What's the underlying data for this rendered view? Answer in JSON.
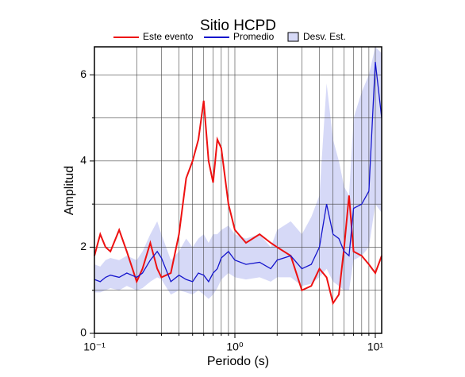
{
  "chart_data": {
    "type": "line",
    "title": "Sitio HCPD",
    "xlabel": "Periodo (s)",
    "ylabel": "Amplitud",
    "xscale": "log",
    "grid": true,
    "legend": "top",
    "xlim": [
      0.1,
      11.1
    ],
    "ylim": [
      0,
      6.65
    ],
    "xticks": [
      {
        "value": 0.1,
        "label": "10⁻¹"
      },
      {
        "value": 1,
        "label": "10⁰"
      },
      {
        "value": 10,
        "label": "10¹"
      }
    ],
    "xminor": [
      0.2,
      0.3,
      0.4,
      0.5,
      0.6,
      0.7,
      0.8,
      0.9,
      2,
      3,
      4,
      5,
      6,
      7,
      8,
      9
    ],
    "yticks": [
      0,
      2,
      4,
      6
    ],
    "yminor": [
      1,
      3,
      5
    ],
    "x": [
      0.1,
      0.11,
      0.12,
      0.13,
      0.15,
      0.17,
      0.2,
      0.22,
      0.25,
      0.28,
      0.3,
      0.35,
      0.4,
      0.45,
      0.5,
      0.55,
      0.6,
      0.65,
      0.7,
      0.75,
      0.8,
      0.9,
      1.0,
      1.2,
      1.5,
      1.8,
      2.0,
      2.5,
      3.0,
      3.5,
      4.0,
      4.5,
      5.0,
      5.5,
      6.0,
      6.5,
      7.0,
      8.0,
      9.0,
      10.0,
      11.1
    ],
    "band": {
      "name": "Desv. Est.",
      "color": "#d6d9f7",
      "lower": [
        0.95,
        0.95,
        1.0,
        1.05,
        1.0,
        1.1,
        1.0,
        1.05,
        1.2,
        1.3,
        1.25,
        0.9,
        1.0,
        0.95,
        0.9,
        1.0,
        0.9,
        0.8,
        0.9,
        1.05,
        1.25,
        1.4,
        1.3,
        1.25,
        1.3,
        1.2,
        1.3,
        1.3,
        1.1,
        1.15,
        1.3,
        1.5,
        1.2,
        1.1,
        1.0,
        1.0,
        1.7,
        1.8,
        2.0,
        3.0,
        2.8
      ],
      "upper": [
        1.6,
        1.55,
        1.7,
        1.75,
        1.7,
        1.8,
        1.7,
        1.9,
        2.3,
        2.6,
        2.3,
        1.7,
        1.9,
        2.2,
        2.0,
        2.2,
        2.3,
        2.1,
        2.3,
        2.3,
        2.4,
        2.5,
        2.3,
        2.2,
        2.3,
        2.0,
        2.4,
        2.6,
        2.3,
        2.7,
        3.2,
        5.8,
        4.5,
        4.0,
        3.4,
        3.2,
        5.0,
        5.6,
        6.0,
        6.65,
        6.5
      ]
    },
    "series": [
      {
        "name": "Este evento",
        "color": "#ee1111",
        "values": [
          1.8,
          2.3,
          2.0,
          1.9,
          2.4,
          1.9,
          1.2,
          1.5,
          2.1,
          1.5,
          1.3,
          1.4,
          2.3,
          3.6,
          4.0,
          4.5,
          5.4,
          4.0,
          3.5,
          4.5,
          4.3,
          3.0,
          2.4,
          2.1,
          2.3,
          2.1,
          2.0,
          1.8,
          1.0,
          1.1,
          1.5,
          1.3,
          0.7,
          0.9,
          2.0,
          3.2,
          1.9,
          1.8,
          1.6,
          1.4,
          1.8
        ]
      },
      {
        "name": "Promedio",
        "color": "#1515cc",
        "values": [
          1.25,
          1.2,
          1.3,
          1.35,
          1.3,
          1.4,
          1.3,
          1.4,
          1.7,
          1.9,
          1.75,
          1.2,
          1.35,
          1.25,
          1.2,
          1.4,
          1.35,
          1.2,
          1.4,
          1.5,
          1.75,
          1.9,
          1.7,
          1.6,
          1.65,
          1.5,
          1.7,
          1.8,
          1.5,
          1.6,
          2.0,
          3.0,
          2.3,
          2.2,
          1.9,
          1.8,
          2.9,
          3.0,
          3.3,
          6.3,
          5.0
        ]
      }
    ]
  }
}
